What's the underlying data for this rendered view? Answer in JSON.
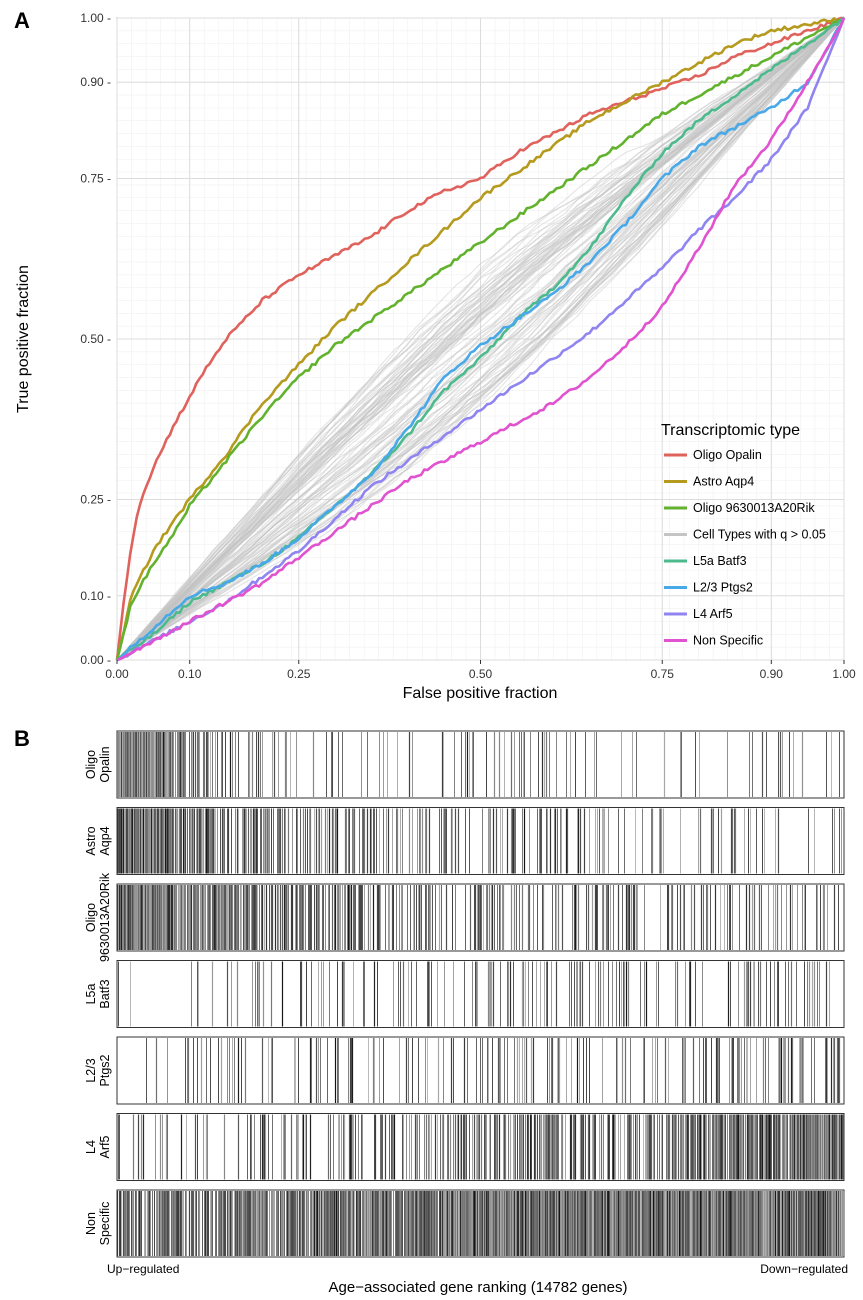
{
  "panels": {
    "a_label": "A",
    "b_label": "B"
  },
  "chart_data": [
    {
      "type": "line",
      "panel": "A",
      "title": "",
      "xlabel": "False positive fraction",
      "ylabel": "True positive fraction",
      "xlim": [
        0,
        1
      ],
      "ylim": [
        0,
        1
      ],
      "x_ticks": [
        0.0,
        0.1,
        0.25,
        0.5,
        0.75,
        0.9,
        1.0
      ],
      "x_tick_labels": [
        "0.00",
        "0.10",
        "0.25",
        "0.50",
        "0.75",
        "0.90",
        "1.00"
      ],
      "y_ticks": [
        0.0,
        0.1,
        0.25,
        0.5,
        0.75,
        0.9,
        1.0
      ],
      "y_tick_labels": [
        "0.00 -",
        "0.10 -",
        "0.25 -",
        "0.50 -",
        "0.75 -",
        "0.90 -",
        "1.00 -"
      ],
      "grid": true,
      "legend_title": "Transcriptomic type",
      "legend_position": "bottom-right",
      "series": [
        {
          "name": "Oligo Opalin",
          "color": "#e0625c",
          "x": [
            0,
            0.01,
            0.02,
            0.03,
            0.05,
            0.08,
            0.1,
            0.12,
            0.15,
            0.2,
            0.25,
            0.3,
            0.35,
            0.4,
            0.45,
            0.5,
            0.55,
            0.6,
            0.65,
            0.7,
            0.75,
            0.8,
            0.85,
            0.9,
            0.95,
            1.0
          ],
          "y": [
            0,
            0.1,
            0.18,
            0.24,
            0.3,
            0.37,
            0.41,
            0.45,
            0.5,
            0.56,
            0.6,
            0.63,
            0.66,
            0.7,
            0.73,
            0.75,
            0.79,
            0.82,
            0.85,
            0.87,
            0.89,
            0.91,
            0.94,
            0.96,
            0.98,
            1.0
          ]
        },
        {
          "name": "Astro Aqp4",
          "color": "#b59a1e",
          "x": [
            0,
            0.02,
            0.05,
            0.08,
            0.1,
            0.15,
            0.2,
            0.25,
            0.3,
            0.35,
            0.4,
            0.45,
            0.5,
            0.55,
            0.6,
            0.65,
            0.7,
            0.75,
            0.8,
            0.85,
            0.9,
            0.95,
            1.0
          ],
          "y": [
            0,
            0.1,
            0.17,
            0.22,
            0.25,
            0.32,
            0.4,
            0.46,
            0.52,
            0.57,
            0.62,
            0.67,
            0.72,
            0.76,
            0.8,
            0.84,
            0.87,
            0.9,
            0.93,
            0.96,
            0.98,
            0.99,
            1.0
          ]
        },
        {
          "name": "Oligo 9630013A20Rik",
          "color": "#63b22e",
          "x": [
            0,
            0.02,
            0.05,
            0.08,
            0.1,
            0.15,
            0.2,
            0.25,
            0.3,
            0.35,
            0.4,
            0.45,
            0.5,
            0.55,
            0.6,
            0.65,
            0.7,
            0.75,
            0.8,
            0.85,
            0.9,
            0.95,
            1.0
          ],
          "y": [
            0,
            0.09,
            0.15,
            0.2,
            0.24,
            0.31,
            0.38,
            0.44,
            0.49,
            0.53,
            0.57,
            0.61,
            0.65,
            0.69,
            0.73,
            0.77,
            0.81,
            0.85,
            0.88,
            0.91,
            0.94,
            0.97,
            1.0
          ]
        },
        {
          "name": "Cell Types with q > 0.05",
          "color": "#c4c4c4",
          "x": [
            0,
            0.1,
            0.25,
            0.5,
            0.75,
            0.9,
            1.0
          ],
          "y": [
            0,
            0.1,
            0.25,
            0.5,
            0.75,
            0.9,
            1.0
          ]
        },
        {
          "name": "L5a Batf3",
          "color": "#4dba8e",
          "x": [
            0,
            0.05,
            0.1,
            0.15,
            0.2,
            0.25,
            0.3,
            0.35,
            0.4,
            0.45,
            0.5,
            0.55,
            0.6,
            0.65,
            0.7,
            0.75,
            0.8,
            0.85,
            0.9,
            0.95,
            1.0
          ],
          "y": [
            0,
            0.04,
            0.09,
            0.12,
            0.15,
            0.19,
            0.24,
            0.29,
            0.35,
            0.42,
            0.47,
            0.53,
            0.58,
            0.64,
            0.72,
            0.79,
            0.84,
            0.88,
            0.92,
            0.96,
            1.0
          ]
        },
        {
          "name": "L2/3 Ptgs2",
          "color": "#48a8e8",
          "x": [
            0,
            0.05,
            0.1,
            0.15,
            0.2,
            0.25,
            0.3,
            0.35,
            0.4,
            0.45,
            0.5,
            0.55,
            0.6,
            0.65,
            0.7,
            0.75,
            0.8,
            0.85,
            0.9,
            0.95,
            1.0
          ],
          "y": [
            0,
            0.05,
            0.1,
            0.12,
            0.15,
            0.19,
            0.24,
            0.29,
            0.36,
            0.44,
            0.49,
            0.53,
            0.57,
            0.62,
            0.68,
            0.75,
            0.8,
            0.83,
            0.86,
            0.9,
            1.0
          ]
        },
        {
          "name": "L4 Arf5",
          "color": "#9085f0",
          "x": [
            0,
            0.05,
            0.1,
            0.15,
            0.2,
            0.25,
            0.3,
            0.35,
            0.4,
            0.45,
            0.5,
            0.55,
            0.6,
            0.65,
            0.7,
            0.75,
            0.8,
            0.85,
            0.9,
            0.95,
            1.0
          ],
          "y": [
            0,
            0.03,
            0.06,
            0.09,
            0.13,
            0.17,
            0.22,
            0.27,
            0.31,
            0.35,
            0.39,
            0.43,
            0.47,
            0.51,
            0.56,
            0.61,
            0.67,
            0.72,
            0.78,
            0.86,
            1.0
          ]
        },
        {
          "name": "Non Specific",
          "color": "#e052d0",
          "x": [
            0,
            0.05,
            0.1,
            0.15,
            0.2,
            0.25,
            0.3,
            0.35,
            0.4,
            0.45,
            0.5,
            0.55,
            0.6,
            0.65,
            0.7,
            0.75,
            0.8,
            0.85,
            0.9,
            0.95,
            1.0
          ],
          "y": [
            0,
            0.03,
            0.06,
            0.09,
            0.12,
            0.16,
            0.2,
            0.24,
            0.28,
            0.31,
            0.34,
            0.37,
            0.4,
            0.44,
            0.49,
            0.55,
            0.64,
            0.74,
            0.81,
            0.9,
            1.0
          ]
        }
      ]
    },
    {
      "type": "barcode",
      "panel": "B",
      "xlabel": "Age−associated gene ranking (14782 genes)",
      "left_label": "Up−regulated",
      "right_label": "Down−regulated",
      "rows": [
        {
          "name": "Oligo Opalin",
          "label_line1": "Oligo",
          "label_line2": "Opalin",
          "density_profile": [
            6,
            3,
            1.2,
            0.9,
            0.8,
            0.8,
            0.7,
            0.7,
            0.6,
            0.6,
            0.5,
            0.5,
            0.4
          ]
        },
        {
          "name": "Astro Aqp4",
          "label_line1": "Astro",
          "label_line2": "Aqp4",
          "density_profile": [
            5,
            3.5,
            2.5,
            2,
            1.8,
            1.5,
            1.4,
            1.2,
            1,
            0.9,
            0.8,
            0.7,
            0.6
          ]
        },
        {
          "name": "Oligo 9630013A20Rik",
          "label_line1": "Oligo",
          "label_line2": "9630013A20Rik",
          "density_profile": [
            6,
            4,
            3,
            2.5,
            2.2,
            2,
            1.8,
            1.6,
            1.5,
            1.3,
            1.2,
            1.1,
            1
          ]
        },
        {
          "name": "L5a Batf3",
          "label_line1": "L5a",
          "label_line2": "Batf3",
          "density_profile": [
            0.3,
            0.5,
            0.6,
            0.7,
            0.8,
            0.8,
            0.9,
            0.9,
            1,
            1,
            1.1,
            1.2,
            1.2
          ]
        },
        {
          "name": "L2/3 Ptgs2",
          "label_line1": "L2/3",
          "label_line2": "Ptgs2",
          "density_profile": [
            0.5,
            0.6,
            0.7,
            0.8,
            0.9,
            1,
            1,
            1.1,
            1.2,
            1.2,
            1.3,
            1.4,
            1.5
          ]
        },
        {
          "name": "L4 Arf5",
          "label_line1": "L4",
          "label_line2": "Arf5",
          "density_profile": [
            0.8,
            1,
            1.3,
            1.5,
            1.8,
            2,
            2.3,
            2.6,
            3,
            3.3,
            3.6,
            4,
            4.5
          ]
        },
        {
          "name": "Non Specific",
          "label_line1": "Non",
          "label_line2": "Specific",
          "density_profile": [
            3,
            3.5,
            4,
            4,
            4.2,
            4.5,
            4.7,
            5,
            5.2,
            5.5,
            5.8,
            6,
            6.5
          ]
        }
      ]
    }
  ]
}
